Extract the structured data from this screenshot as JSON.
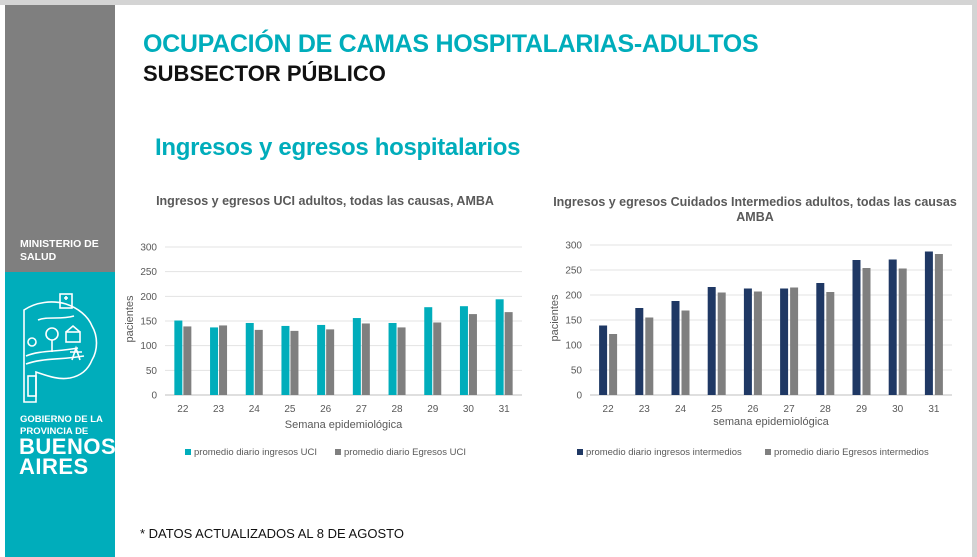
{
  "sidebar": {
    "ministry": "MINISTERIO DE SALUD",
    "gov_line1": "GOBIERNO DE LA",
    "gov_line2": "PROVINCIA DE",
    "gov_line3": "BUENOS",
    "gov_line4": "AIRES",
    "logo_icon": "province-map-logo-icon"
  },
  "header": {
    "title": "OCUPACIÓN DE CAMAS HOSPITALARIAS-ADULTOS",
    "subtitle": "SUBSECTOR PÚBLICO"
  },
  "section_title": "Ingresos y egresos hospitalarios",
  "footnote": "* DATOS ACTUALIZADOS AL 8 DE AGOSTO",
  "colors": {
    "teal": "#00adbb",
    "gray": "#7f7f7f",
    "navy": "#1f3864"
  },
  "chart_data": [
    {
      "type": "bar",
      "title": "Ingresos y egresos UCI adultos, todas las causas, AMBA",
      "xlabel": "Semana epidemiológica",
      "ylabel": "pacientes",
      "ylim": [
        0,
        300
      ],
      "yticks": [
        0,
        50,
        100,
        150,
        200,
        250,
        300
      ],
      "grid": true,
      "legend_position": "bottom",
      "categories": [
        "22",
        "23",
        "24",
        "25",
        "26",
        "27",
        "28",
        "29",
        "30",
        "31"
      ],
      "series": [
        {
          "name": "promedio diario ingresos UCI",
          "color": "#00adbb",
          "values": [
            151,
            137,
            146,
            140,
            142,
            156,
            146,
            178,
            180,
            194
          ]
        },
        {
          "name": "promedio diario Egresos UCI",
          "color": "#7f7f7f",
          "values": [
            139,
            141,
            132,
            130,
            133,
            145,
            137,
            147,
            164,
            168
          ]
        }
      ]
    },
    {
      "type": "bar",
      "title": "Ingresos y egresos Cuidados Intermedios adultos, todas las causas AMBA",
      "xlabel": "semana epidemiológica",
      "ylabel": "pacientes",
      "ylim": [
        0,
        300
      ],
      "yticks": [
        0,
        50,
        100,
        150,
        200,
        250,
        300
      ],
      "grid": true,
      "legend_position": "bottom",
      "categories": [
        "22",
        "23",
        "24",
        "25",
        "26",
        "27",
        "28",
        "29",
        "30",
        "31"
      ],
      "series": [
        {
          "name": "promedio diario ingresos intermedios",
          "color": "#1f3864",
          "values": [
            139,
            174,
            188,
            216,
            213,
            213,
            224,
            270,
            271,
            287
          ]
        },
        {
          "name": "promedio diario Egresos intermedios",
          "color": "#7f7f7f",
          "values": [
            122,
            155,
            169,
            205,
            207,
            215,
            206,
            254,
            253,
            282
          ]
        }
      ]
    }
  ]
}
